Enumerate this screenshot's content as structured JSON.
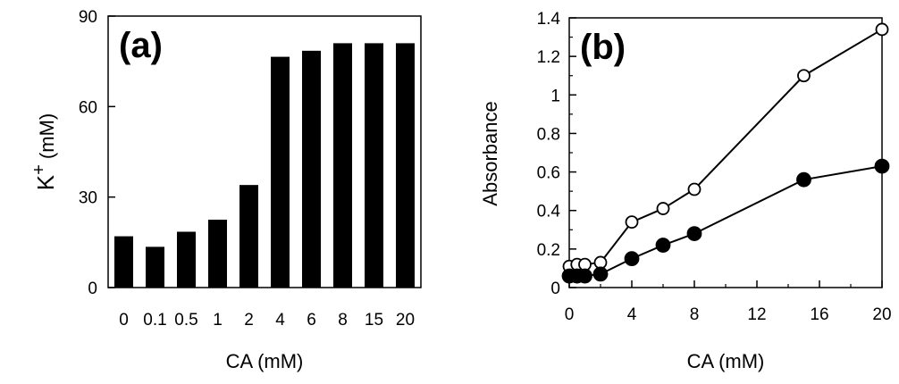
{
  "chart_data": [
    {
      "type": "bar",
      "panel_label": "(a)",
      "xlabel": "CA (mM)",
      "ylabel_main": "K",
      "ylabel_sup": "+",
      "ylabel_unit": "(mM)",
      "categories": [
        "0",
        "0.1",
        "0.5",
        "1",
        "2",
        "4",
        "6",
        "8",
        "15",
        "20"
      ],
      "values": [
        17,
        13.5,
        18.5,
        22.5,
        34,
        76.5,
        78.5,
        81,
        81,
        81
      ],
      "ylim": [
        0,
        90
      ],
      "yticks": [
        0,
        30,
        60,
        90
      ],
      "bar_color": "#000000",
      "grid": false
    },
    {
      "type": "line",
      "panel_label": "(b)",
      "xlabel": "CA (mM)",
      "ylabel": "Absorbance",
      "xlim": [
        0,
        20
      ],
      "ylim": [
        0,
        1.4
      ],
      "xticks": [
        0,
        4,
        8,
        12,
        16,
        20
      ],
      "yticks": [
        0,
        0.2,
        0.4,
        0.6,
        0.8,
        1,
        1.2,
        1.4
      ],
      "grid": false,
      "series": [
        {
          "marker": "open-circle",
          "color": "#000000",
          "x": [
            0,
            0.5,
            1,
            2,
            4,
            6,
            8,
            15,
            20
          ],
          "y": [
            0.11,
            0.12,
            0.12,
            0.13,
            0.34,
            0.41,
            0.51,
            1.1,
            1.34
          ]
        },
        {
          "marker": "filled-circle",
          "color": "#000000",
          "x": [
            0,
            0.5,
            1,
            2,
            4,
            6,
            8,
            15,
            20
          ],
          "y": [
            0.06,
            0.06,
            0.06,
            0.07,
            0.15,
            0.22,
            0.28,
            0.56,
            0.63
          ]
        }
      ]
    }
  ]
}
